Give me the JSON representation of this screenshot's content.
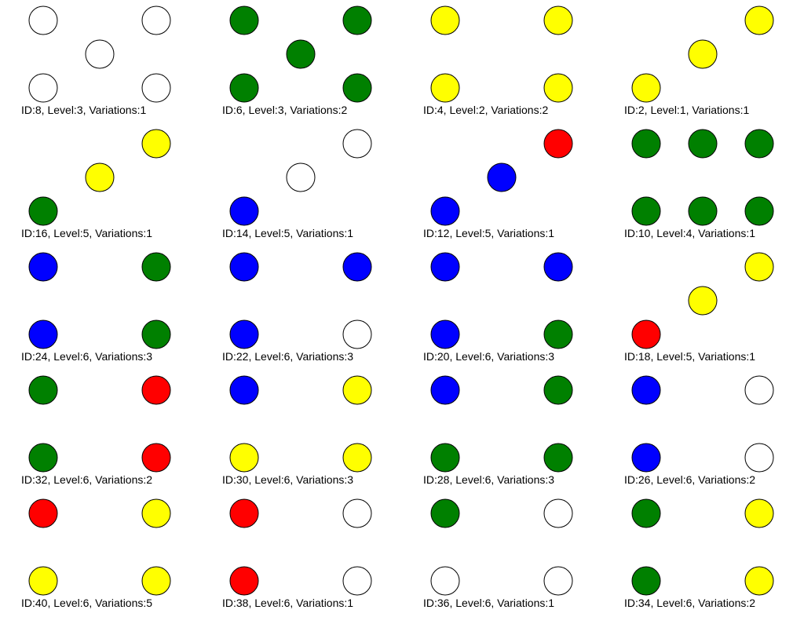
{
  "colors": {
    "white": "#ffffff",
    "green": "#008000",
    "yellow": "#ffff00",
    "blue": "#0000ff",
    "red": "#ff0000"
  },
  "patterns": [
    {
      "label": "ID:8, Level:3, Variations:1",
      "tl": "white",
      "tr": "white",
      "mid": "white",
      "bl": "white",
      "br": "white"
    },
    {
      "label": "ID:6, Level:3, Variations:2",
      "tl": "green",
      "tr": "green",
      "mid": "green",
      "bl": "green",
      "br": "green"
    },
    {
      "label": "ID:4, Level:2, Variations:2",
      "tl": "yellow",
      "tr": "yellow",
      "bl": "yellow",
      "br": "yellow"
    },
    {
      "label": "ID:2, Level:1, Variations:1",
      "tr": "yellow",
      "mid": "yellow",
      "bl": "yellow"
    },
    {
      "label": "ID:16, Level:5, Variations:1",
      "tr": "yellow",
      "mid": "yellow",
      "bl": "green"
    },
    {
      "label": "ID:14, Level:5, Variations:1",
      "tr": "white",
      "mid": "white",
      "bl": "blue"
    },
    {
      "label": "ID:12, Level:5, Variations:1",
      "tr": "red",
      "mid": "blue",
      "bl": "blue"
    },
    {
      "label": "ID:10, Level:4, Variations:1",
      "tl": "green",
      "tm": "green",
      "tr": "green",
      "bl": "green",
      "bm": "green",
      "br": "green"
    },
    {
      "label": "ID:24, Level:6, Variations:3",
      "tl": "blue",
      "tr": "green",
      "bl": "blue",
      "br": "green"
    },
    {
      "label": "ID:22, Level:6, Variations:3",
      "tl": "blue",
      "tr": "blue",
      "bl": "blue",
      "br": "white"
    },
    {
      "label": "ID:20, Level:6, Variations:3",
      "tl": "blue",
      "tr": "blue",
      "bl": "blue",
      "br": "green"
    },
    {
      "label": "ID:18, Level:5, Variations:1",
      "tr": "yellow",
      "mid": "yellow",
      "bl": "red"
    },
    {
      "label": "ID:32, Level:6, Variations:2",
      "tl": "green",
      "tr": "red",
      "bl": "green",
      "br": "red"
    },
    {
      "label": "ID:30, Level:6, Variations:3",
      "tl": "blue",
      "tr": "yellow",
      "bl": "yellow",
      "br": "yellow"
    },
    {
      "label": "ID:28, Level:6, Variations:3",
      "tl": "blue",
      "tr": "green",
      "bl": "green",
      "br": "green"
    },
    {
      "label": "ID:26, Level:6, Variations:2",
      "tl": "blue",
      "tr": "white",
      "bl": "blue",
      "br": "white"
    },
    {
      "label": "ID:40, Level:6, Variations:5",
      "tl": "red",
      "tr": "yellow",
      "bl": "yellow",
      "br": "yellow"
    },
    {
      "label": "ID:38, Level:6, Variations:1",
      "tl": "red",
      "tr": "white",
      "bl": "red",
      "br": "white"
    },
    {
      "label": "ID:36, Level:6, Variations:1",
      "tl": "green",
      "tr": "white",
      "bl": "white",
      "br": "white"
    },
    {
      "label": "ID:34, Level:6, Variations:2",
      "tl": "green",
      "tr": "yellow",
      "bl": "green",
      "br": "yellow"
    }
  ]
}
